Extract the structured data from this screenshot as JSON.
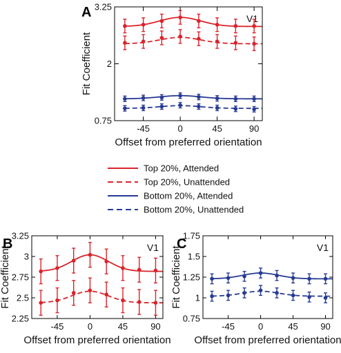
{
  "colors": {
    "red": "#d9232b",
    "blue": "#263a93"
  },
  "legend": [
    {
      "label": "Top 20%, Attended",
      "color": "#d9232b",
      "dash": "solid"
    },
    {
      "label": "Top 20%, Unattended",
      "color": "#d9232b",
      "dash": "dashed"
    },
    {
      "label": "Bottom 20%, Attended",
      "color": "#263a93",
      "dash": "solid"
    },
    {
      "label": "Bottom 20%, Unattended",
      "color": "#263a93",
      "dash": "dashed"
    }
  ],
  "chart_data": [
    {
      "panel": "A",
      "type": "line",
      "annotation": "V1",
      "xlabel": "Offset from preferred orientation",
      "ylabel": "Fit Coefficient",
      "xlim": [
        -80,
        100
      ],
      "ylim": [
        0.75,
        3.25
      ],
      "xticks": [
        -45,
        0,
        45,
        90
      ],
      "yticks": [
        0.75,
        2,
        3.25
      ],
      "ytick_labels": [
        "0.75",
        "2",
        "3.25"
      ],
      "x": [
        -67.5,
        -45,
        -22.5,
        0,
        22.5,
        45,
        67.5,
        90
      ],
      "series": [
        {
          "color": "#d9232b",
          "dash": "solid",
          "values": [
            2.83,
            2.86,
            2.94,
            3.02,
            2.94,
            2.86,
            2.83,
            2.83
          ],
          "errors": [
            0.15,
            0.15,
            0.15,
            0.15,
            0.15,
            0.15,
            0.15,
            0.15
          ],
          "fit": {
            "baseline": 2.82,
            "amplitude": 0.2,
            "sigma": 25
          }
        },
        {
          "color": "#d9232b",
          "dash": "dashed",
          "values": [
            2.46,
            2.49,
            2.57,
            2.6,
            2.55,
            2.49,
            2.46,
            2.44
          ],
          "errors": [
            0.15,
            0.15,
            0.15,
            0.15,
            0.15,
            0.15,
            0.15,
            0.15
          ],
          "fit": {
            "baseline": 2.44,
            "amplitude": 0.14,
            "sigma": 25
          }
        },
        {
          "color": "#263a93",
          "dash": "solid",
          "values": [
            1.23,
            1.25,
            1.26,
            1.3,
            1.27,
            1.24,
            1.23,
            1.23
          ],
          "errors": [
            0.06,
            0.06,
            0.06,
            0.06,
            0.06,
            0.06,
            0.06,
            0.06
          ],
          "fit": {
            "baseline": 1.23,
            "amplitude": 0.07,
            "sigma": 25
          }
        },
        {
          "color": "#263a93",
          "dash": "dashed",
          "values": [
            1.02,
            1.03,
            1.06,
            1.09,
            1.06,
            1.03,
            1.01,
            1.0
          ],
          "errors": [
            0.06,
            0.06,
            0.06,
            0.06,
            0.06,
            0.06,
            0.06,
            0.06
          ],
          "fit": {
            "baseline": 1.02,
            "amplitude": 0.06,
            "sigma": 25
          }
        }
      ]
    },
    {
      "panel": "B",
      "type": "line",
      "annotation": "V1",
      "xlabel": "Offset from preferred orientation",
      "ylabel": "Fit Coefficient",
      "xlim": [
        -80,
        100
      ],
      "ylim": [
        2.25,
        3.25
      ],
      "xticks": [
        -45,
        0,
        45,
        90
      ],
      "yticks": [
        2.25,
        2.5,
        2.75,
        3,
        3.25
      ],
      "ytick_labels": [
        "2.25",
        "2.5",
        "2.75",
        "3",
        "3.25"
      ],
      "x": [
        -67.5,
        -45,
        -22.5,
        0,
        22.5,
        45,
        67.5,
        90
      ],
      "series": [
        {
          "color": "#d9232b",
          "dash": "solid",
          "values": [
            2.82,
            2.86,
            2.95,
            3.02,
            2.94,
            2.86,
            2.84,
            2.83
          ],
          "errors": [
            0.15,
            0.15,
            0.15,
            0.15,
            0.15,
            0.15,
            0.15,
            0.15
          ],
          "fit": {
            "baseline": 2.82,
            "amplitude": 0.2,
            "sigma": 25
          }
        },
        {
          "color": "#d9232b",
          "dash": "dashed",
          "values": [
            2.44,
            2.47,
            2.56,
            2.59,
            2.54,
            2.47,
            2.45,
            2.44
          ],
          "errors": [
            0.15,
            0.15,
            0.15,
            0.15,
            0.15,
            0.15,
            0.15,
            0.15
          ],
          "fit": {
            "baseline": 2.44,
            "amplitude": 0.14,
            "sigma": 25
          }
        }
      ]
    },
    {
      "panel": "C",
      "type": "line",
      "annotation": "V1",
      "xlabel": "Offset from preferred orientation",
      "ylabel": "Fit Coefficient",
      "xlim": [
        -80,
        100
      ],
      "ylim": [
        0.75,
        1.75
      ],
      "xticks": [
        -45,
        0,
        45,
        90
      ],
      "yticks": [
        0.75,
        1,
        1.25,
        1.5,
        1.75
      ],
      "ytick_labels": [
        "0.75",
        "1",
        "1.25",
        "1.5",
        "1.75"
      ],
      "x": [
        -67.5,
        -45,
        -22.5,
        0,
        22.5,
        45,
        67.5,
        90
      ],
      "series": [
        {
          "color": "#263a93",
          "dash": "solid",
          "values": [
            1.23,
            1.24,
            1.26,
            1.3,
            1.27,
            1.24,
            1.23,
            1.23
          ],
          "errors": [
            0.06,
            0.06,
            0.06,
            0.06,
            0.06,
            0.06,
            0.06,
            0.06
          ],
          "fit": {
            "baseline": 1.23,
            "amplitude": 0.07,
            "sigma": 25
          }
        },
        {
          "color": "#263a93",
          "dash": "dashed",
          "values": [
            1.02,
            1.03,
            1.06,
            1.09,
            1.06,
            1.03,
            1.01,
            1.0
          ],
          "errors": [
            0.06,
            0.06,
            0.06,
            0.06,
            0.06,
            0.06,
            0.06,
            0.06
          ],
          "fit": {
            "baseline": 1.02,
            "amplitude": 0.06,
            "sigma": 25
          }
        }
      ]
    }
  ]
}
